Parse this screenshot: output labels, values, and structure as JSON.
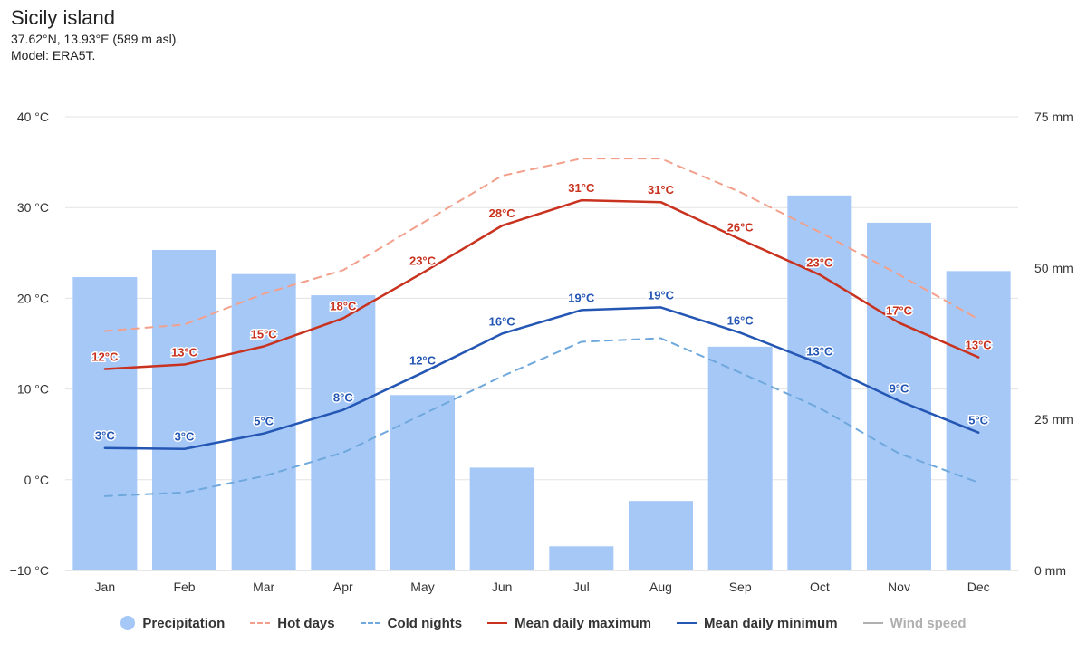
{
  "header": {
    "title": "Sicily island",
    "subtitle_line1": "37.62°N, 13.93°E (589 m asl).",
    "subtitle_line2": "Model: ERA5T."
  },
  "legend": [
    {
      "key": "precipitation",
      "label": "Precipitation",
      "symbol": "dot",
      "color": "#a6c8f7"
    },
    {
      "key": "hot_days",
      "label": "Hot days",
      "symbol": "dash",
      "color": "#f2a08c"
    },
    {
      "key": "cold_nights",
      "label": "Cold nights",
      "symbol": "dash",
      "color": "#6fa8dc"
    },
    {
      "key": "mean_max",
      "label": "Mean daily maximum",
      "symbol": "line",
      "color": "#c8321e"
    },
    {
      "key": "mean_min",
      "label": "Mean daily minimum",
      "symbol": "line",
      "color": "#2456b4"
    },
    {
      "key": "wind_speed",
      "label": "Wind speed",
      "symbol": "line",
      "color": "#b0b0b0",
      "muted": true
    }
  ],
  "chart_data": {
    "type": "bar",
    "categories": [
      "Jan",
      "Feb",
      "Mar",
      "Apr",
      "May",
      "Jun",
      "Jul",
      "Aug",
      "Sep",
      "Oct",
      "Nov",
      "Dec"
    ],
    "y_left": {
      "ticks": [
        -10,
        0,
        10,
        20,
        30,
        40
      ],
      "tick_labels": [
        "−10 °C",
        "0 °C",
        "10 °C",
        "20 °C",
        "30 °C",
        "40 °C"
      ],
      "ylim": [
        -10,
        40
      ]
    },
    "y_right": {
      "ticks": [
        0,
        25,
        50,
        75
      ],
      "tick_labels": [
        "0 mm",
        "25 mm",
        "50 mm",
        "75 mm"
      ],
      "ylim": [
        0,
        75
      ]
    },
    "grid": true,
    "legend_position": "bottom",
    "series": [
      {
        "name": "Precipitation",
        "type": "bar",
        "axis": "right",
        "color": "#a6c8f7",
        "values": [
          48.5,
          53,
          49,
          45.5,
          29,
          17,
          4,
          11.5,
          37,
          62,
          57.5,
          49.5
        ]
      },
      {
        "name": "Hot days",
        "type": "dashed-line",
        "axis": "left",
        "color": "#f2a08c",
        "values": [
          16.4,
          17.1,
          20.5,
          23.1,
          28.3,
          33.5,
          35.4,
          35.4,
          31.7,
          27.3,
          22.6,
          17.7
        ]
      },
      {
        "name": "Cold nights",
        "type": "dashed-line",
        "axis": "left",
        "color": "#6fa8dc",
        "values": [
          -1.8,
          -1.4,
          0.4,
          3.0,
          7.2,
          11.4,
          15.2,
          15.6,
          11.8,
          7.9,
          2.9,
          -0.3
        ]
      },
      {
        "name": "Mean daily maximum",
        "type": "line",
        "axis": "left",
        "color": "#c8321e",
        "values": [
          12.2,
          12.7,
          14.7,
          17.8,
          22.8,
          28.0,
          30.8,
          30.6,
          26.5,
          22.6,
          17.3,
          13.5
        ],
        "labels": [
          "12°C",
          "13°C",
          "15°C",
          "18°C",
          "23°C",
          "28°C",
          "31°C",
          "31°C",
          "26°C",
          "23°C",
          "17°C",
          "13°C"
        ]
      },
      {
        "name": "Mean daily minimum",
        "type": "line",
        "axis": "left",
        "color": "#2456b4",
        "values": [
          3.5,
          3.4,
          5.1,
          7.7,
          11.8,
          16.1,
          18.7,
          19.0,
          16.2,
          12.8,
          8.7,
          5.2
        ],
        "labels": [
          "3°C",
          "3°C",
          "5°C",
          "8°C",
          "12°C",
          "16°C",
          "19°C",
          "19°C",
          "16°C",
          "13°C",
          "9°C",
          "5°C"
        ]
      }
    ]
  }
}
